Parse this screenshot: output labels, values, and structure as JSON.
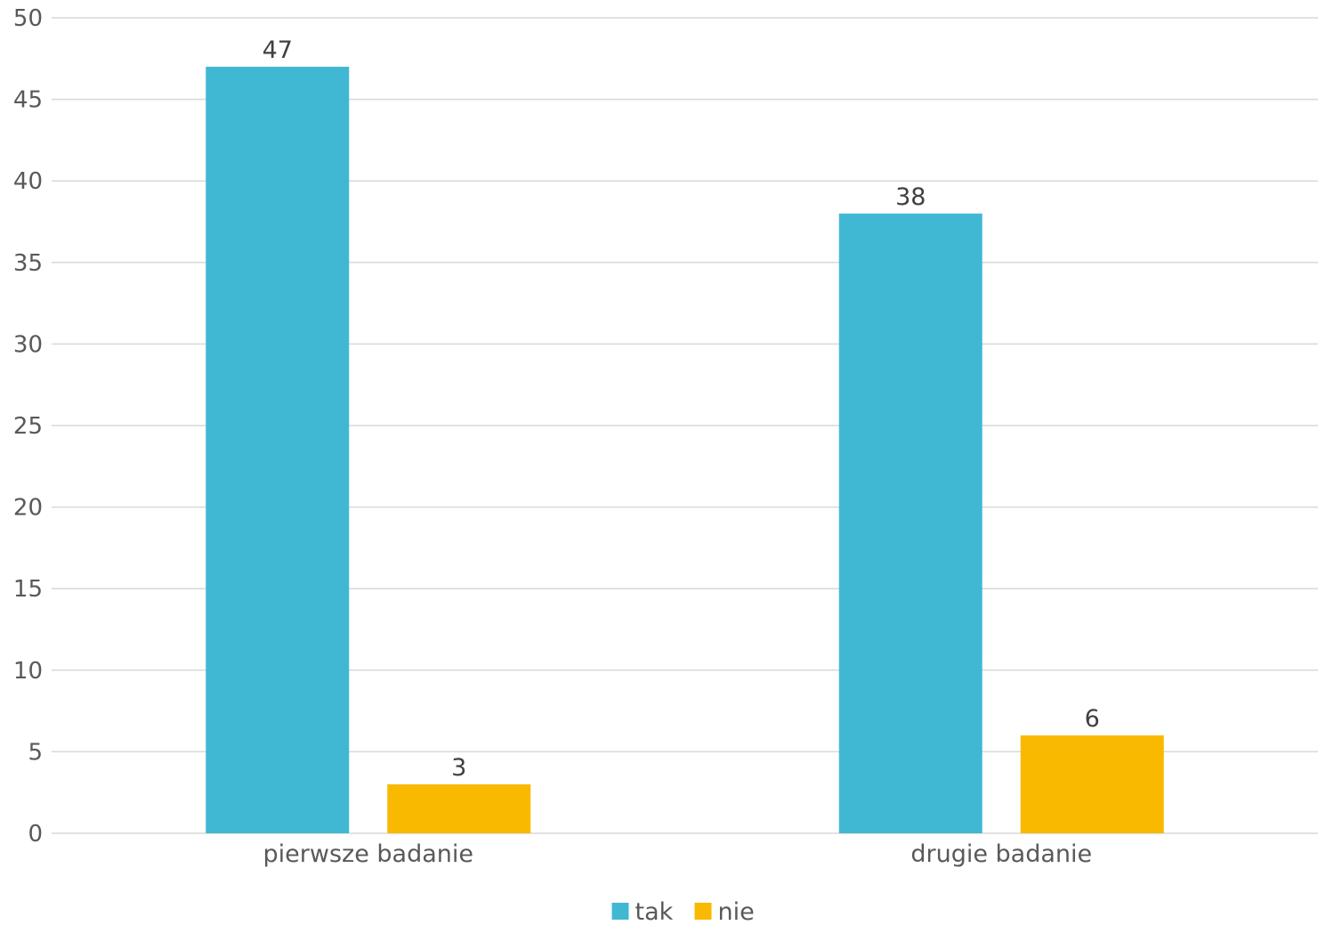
{
  "chart_data": {
    "type": "bar",
    "categories": [
      "pierwsze badanie",
      "drugie badanie"
    ],
    "series": [
      {
        "name": "tak",
        "values": [
          47,
          38
        ],
        "color": "#41B8D3"
      },
      {
        "name": "nie",
        "values": [
          3,
          6
        ],
        "color": "#F8B900"
      }
    ],
    "ylim": [
      0,
      50
    ],
    "yticks": [
      0,
      5,
      10,
      15,
      20,
      25,
      30,
      35,
      40,
      45,
      50
    ],
    "grid": true,
    "legend": "bottom-center",
    "title": "",
    "xlabel": "",
    "ylabel": ""
  },
  "colors": {
    "gridline": "#D9D9D9",
    "axis_text": "#595959",
    "data_label": "#404040"
  }
}
